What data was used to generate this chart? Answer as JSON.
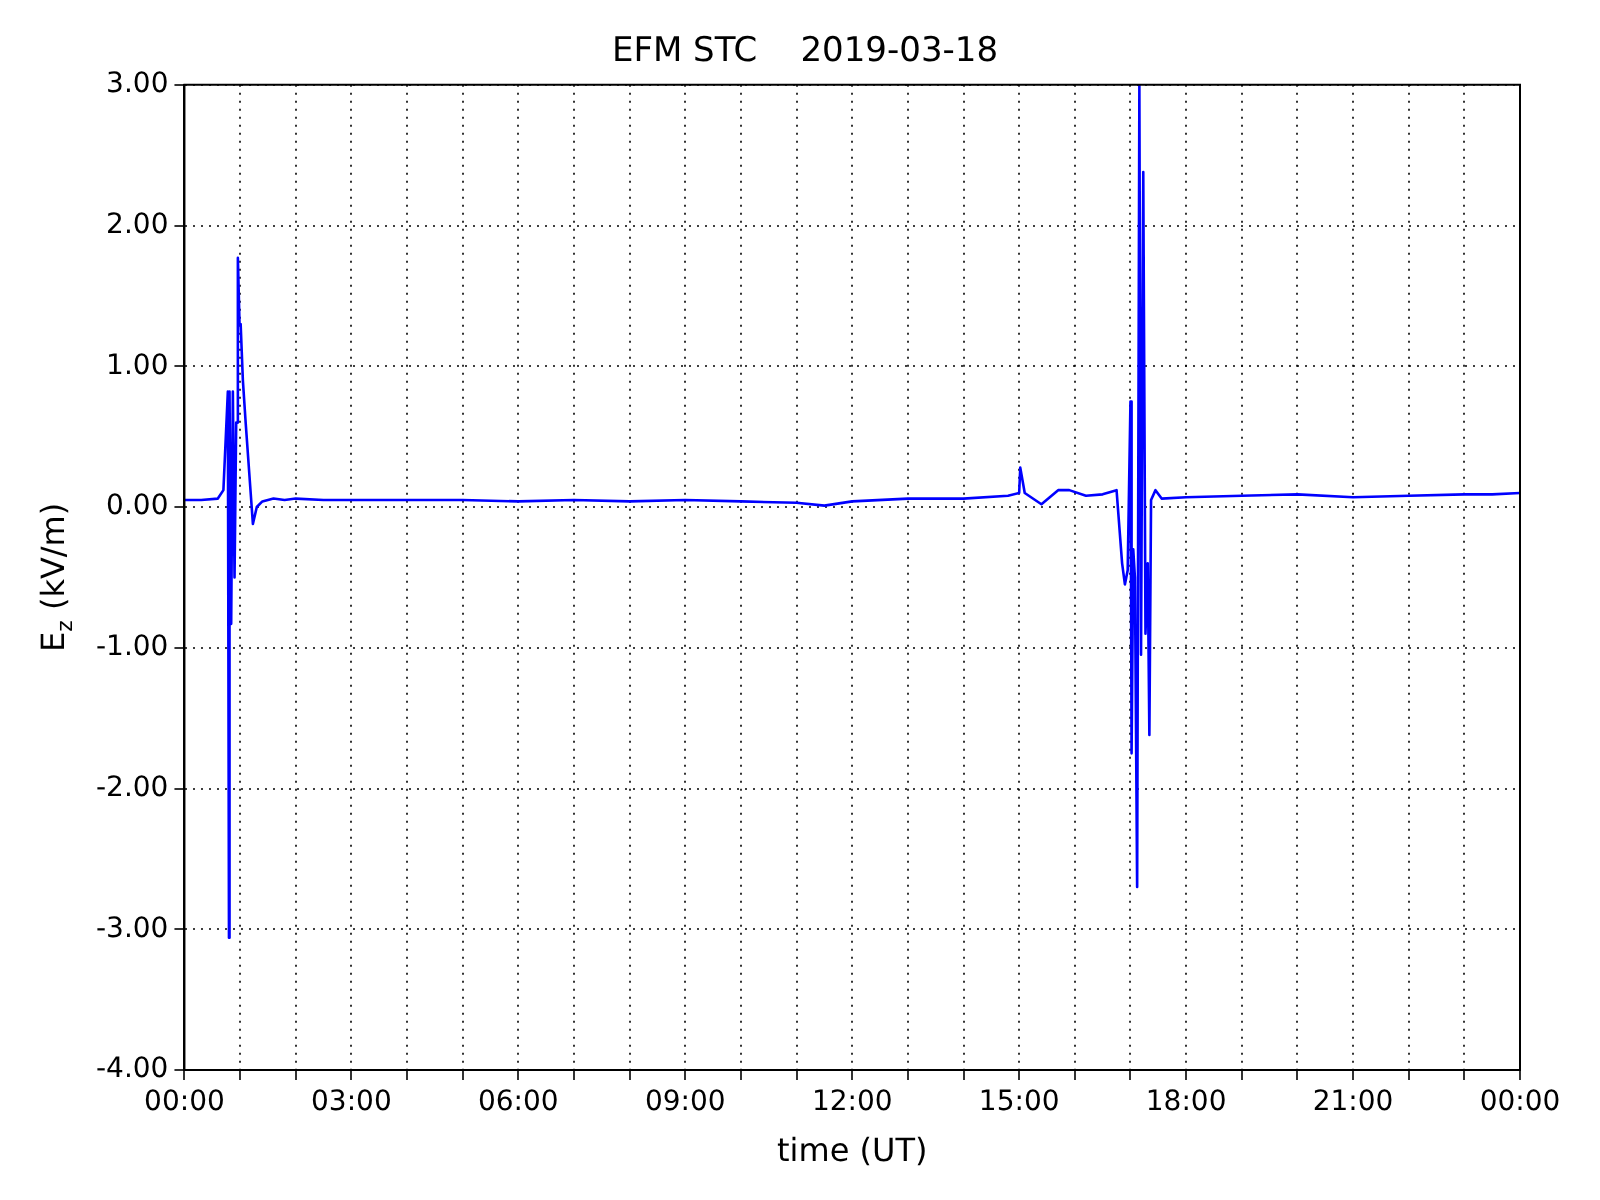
{
  "chart_data": {
    "type": "line",
    "title": "EFM STC    2019-03-18",
    "xlabel": "time (UT)",
    "ylabel": "E$_{z}$ (kV/m)",
    "xlim": [
      0,
      24
    ],
    "ylim": [
      -4,
      3
    ],
    "xticks": [
      {
        "value": 0,
        "label": "00:00"
      },
      {
        "value": 1,
        "label": null
      },
      {
        "value": 2,
        "label": null
      },
      {
        "value": 3,
        "label": "03:00"
      },
      {
        "value": 4,
        "label": null
      },
      {
        "value": 5,
        "label": null
      },
      {
        "value": 6,
        "label": "06:00"
      },
      {
        "value": 7,
        "label": null
      },
      {
        "value": 8,
        "label": null
      },
      {
        "value": 9,
        "label": "09:00"
      },
      {
        "value": 10,
        "label": null
      },
      {
        "value": 11,
        "label": null
      },
      {
        "value": 12,
        "label": "12:00"
      },
      {
        "value": 13,
        "label": null
      },
      {
        "value": 14,
        "label": null
      },
      {
        "value": 15,
        "label": "15:00"
      },
      {
        "value": 16,
        "label": null
      },
      {
        "value": 17,
        "label": null
      },
      {
        "value": 18,
        "label": "18:00"
      },
      {
        "value": 19,
        "label": null
      },
      {
        "value": 20,
        "label": null
      },
      {
        "value": 21,
        "label": "21:00"
      },
      {
        "value": 22,
        "label": null
      },
      {
        "value": 23,
        "label": null
      },
      {
        "value": 24,
        "label": "00:00"
      }
    ],
    "yticks": [
      {
        "value": -4,
        "label": "-4.00"
      },
      {
        "value": -3,
        "label": "-3.00"
      },
      {
        "value": -2,
        "label": "-2.00"
      },
      {
        "value": -1,
        "label": "-1.00"
      },
      {
        "value": 0,
        "label": "0.00"
      },
      {
        "value": 1,
        "label": "1.00"
      },
      {
        "value": 2,
        "label": "2.00"
      },
      {
        "value": 3,
        "label": "3.00"
      }
    ],
    "grid": true,
    "legend": false,
    "marker": "none",
    "line_style": "solid",
    "series": [
      {
        "color": "#0000ff",
        "x": [
          0,
          0.3,
          0.6,
          0.7,
          0.78,
          0.8,
          0.81,
          0.84,
          0.87,
          0.9,
          0.93,
          0.96,
          0.99,
          1.01,
          1.05,
          1.1,
          1.23,
          1.3,
          1.4,
          1.6,
          1.8,
          2,
          2.5,
          3,
          4,
          5,
          6,
          7,
          8,
          9,
          10,
          11,
          11.5,
          12,
          13,
          14,
          14.8,
          15.0,
          15.02,
          15.1,
          15.4,
          15.7,
          15.9,
          16.2,
          16.5,
          16.75,
          16.85,
          16.9,
          16.95,
          17.0,
          17.02,
          17.05,
          17.08,
          17.12,
          17.16,
          17.19,
          17.23,
          17.27,
          17.31,
          17.34,
          17.37,
          17.45,
          17.56,
          18,
          19,
          20,
          21,
          22,
          23,
          23.5,
          24
        ],
        "values": [
          0.05,
          0.05,
          0.06,
          0.12,
          0.82,
          -3.06,
          0.82,
          -0.83,
          0.82,
          -0.5,
          0.6,
          1.77,
          1.3,
          1.3,
          0.9,
          0.6,
          -0.12,
          0.0,
          0.04,
          0.06,
          0.05,
          0.06,
          0.05,
          0.05,
          0.05,
          0.05,
          0.04,
          0.05,
          0.04,
          0.05,
          0.04,
          0.03,
          0.01,
          0.04,
          0.06,
          0.06,
          0.08,
          0.1,
          0.28,
          0.1,
          0.02,
          0.12,
          0.12,
          0.08,
          0.09,
          0.12,
          -0.4,
          -0.55,
          -0.45,
          0.75,
          -1.75,
          -0.3,
          -0.5,
          -2.7,
          3.0,
          -1.05,
          2.38,
          -0.9,
          -0.4,
          -1.62,
          0.05,
          0.12,
          0.06,
          0.07,
          0.08,
          0.09,
          0.07,
          0.08,
          0.09,
          0.09,
          0.1
        ]
      }
    ]
  }
}
